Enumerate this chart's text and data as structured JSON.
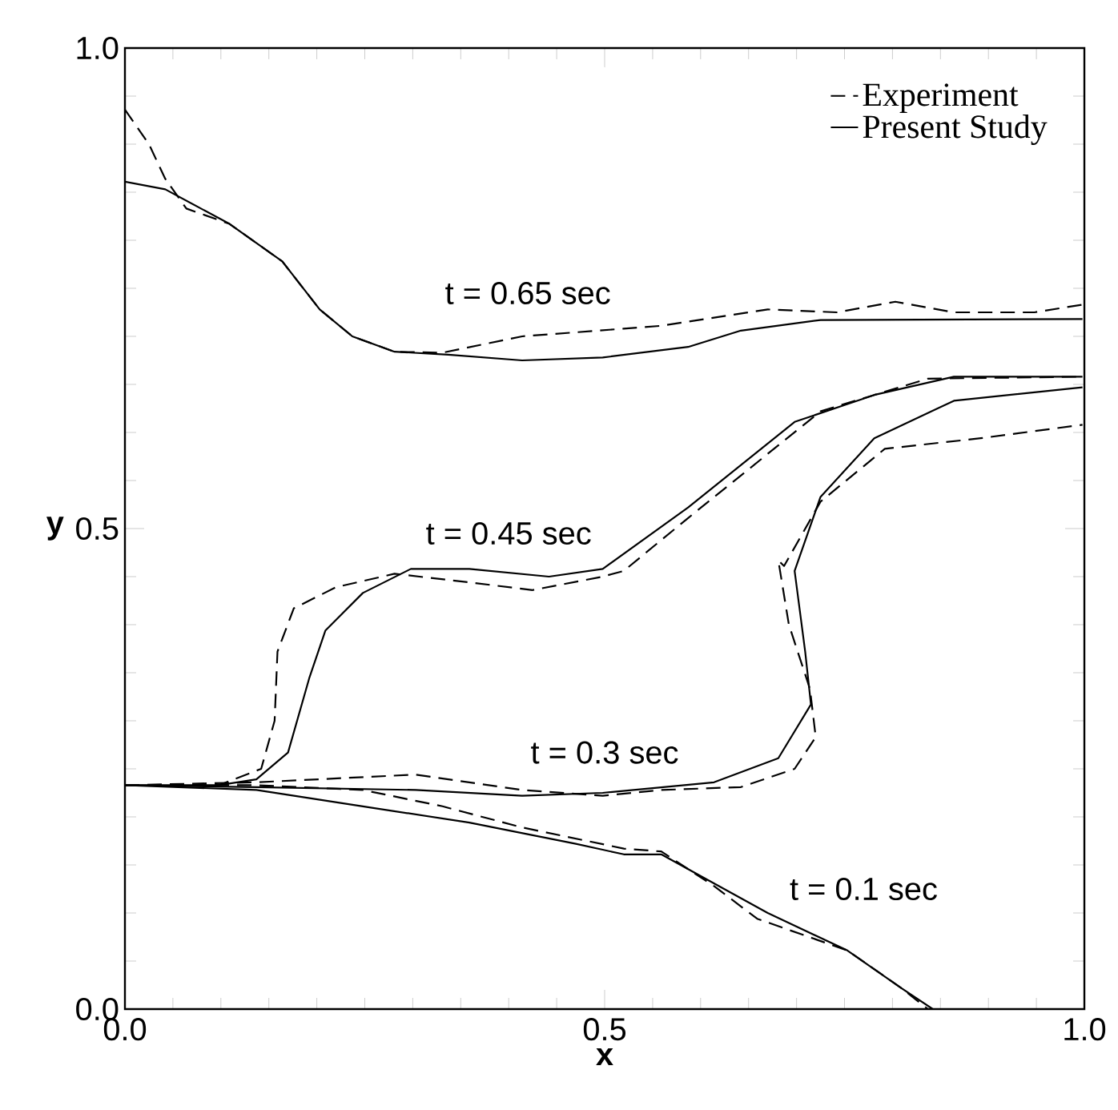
{
  "chart_data": {
    "type": "line",
    "xlabel": "x",
    "ylabel": "y",
    "xlim": [
      0,
      1
    ],
    "ylim": [
      0,
      1
    ],
    "xticks": [
      {
        "value": 0,
        "label": "0.0"
      },
      {
        "value": 0.05,
        "label": null
      },
      {
        "value": 0.1,
        "label": null
      },
      {
        "value": 0.15,
        "label": null
      },
      {
        "value": 0.2,
        "label": null
      },
      {
        "value": 0.25,
        "label": null
      },
      {
        "value": 0.3,
        "label": null
      },
      {
        "value": 0.35,
        "label": null
      },
      {
        "value": 0.4,
        "label": null
      },
      {
        "value": 0.45,
        "label": null
      },
      {
        "value": 0.5,
        "label": "0.5"
      },
      {
        "value": 0.55,
        "label": null
      },
      {
        "value": 0.6,
        "label": null
      },
      {
        "value": 0.65,
        "label": null
      },
      {
        "value": 0.7,
        "label": null
      },
      {
        "value": 0.75,
        "label": null
      },
      {
        "value": 0.8,
        "label": null
      },
      {
        "value": 0.85,
        "label": null
      },
      {
        "value": 0.9,
        "label": null
      },
      {
        "value": 0.95,
        "label": null
      },
      {
        "value": 1,
        "label": "1.0"
      }
    ],
    "yticks": [
      {
        "value": 0,
        "label": "0.0"
      },
      {
        "value": 0.05,
        "label": null
      },
      {
        "value": 0.1,
        "label": null
      },
      {
        "value": 0.15,
        "label": null
      },
      {
        "value": 0.2,
        "label": null
      },
      {
        "value": 0.25,
        "label": null
      },
      {
        "value": 0.3,
        "label": null
      },
      {
        "value": 0.35,
        "label": null
      },
      {
        "value": 0.4,
        "label": null
      },
      {
        "value": 0.45,
        "label": null
      },
      {
        "value": 0.5,
        "label": "0.5"
      },
      {
        "value": 0.55,
        "label": null
      },
      {
        "value": 0.6,
        "label": null
      },
      {
        "value": 0.65,
        "label": null
      },
      {
        "value": 0.7,
        "label": null
      },
      {
        "value": 0.75,
        "label": null
      },
      {
        "value": 0.8,
        "label": null
      },
      {
        "value": 0.85,
        "label": null
      },
      {
        "value": 0.9,
        "label": null
      },
      {
        "value": 0.95,
        "label": null
      },
      {
        "value": 1,
        "label": "1.0"
      }
    ],
    "legend": "top right",
    "series": [
      {
        "name": "Experiment",
        "color": "#000000",
        "line_style": "dashed",
        "x": [
          0,
          0.025,
          0.042,
          0.064,
          0.109,
          0.164,
          0.203,
          0.237,
          0.281,
          0.331,
          0.414,
          0.52,
          0.559,
          0.67,
          0.742,
          0.803,
          0.864,
          0.948,
          0.998
        ],
        "values": [
          0.936,
          0.9,
          0.864,
          0.833,
          0.817,
          0.778,
          0.728,
          0.7,
          0.684,
          0.683,
          0.7,
          0.708,
          0.711,
          0.728,
          0.725,
          0.736,
          0.725,
          0.725,
          0.733
        ]
      },
      {
        "name": "Present Study",
        "color": "#000000",
        "line_style": "solid",
        "x": [
          0,
          0.042,
          0.109,
          0.164,
          0.203,
          0.237,
          0.281,
          0.337,
          0.414,
          0.498,
          0.587,
          0.642,
          0.725,
          0.998
        ],
        "values": [
          0.861,
          0.853,
          0.817,
          0.778,
          0.728,
          0.7,
          0.684,
          0.681,
          0.675,
          0.678,
          0.689,
          0.706,
          0.717,
          0.718
        ]
      },
      {
        "color": "#000000",
        "line_style": "dashed",
        "x": [
          0,
          0.098,
          0.142,
          0.156,
          0.159,
          0.176,
          0.22,
          0.281,
          0.359,
          0.425,
          0.498,
          0.52,
          0.587,
          0.725,
          0.837,
          0.998
        ],
        "values": [
          0.233,
          0.233,
          0.25,
          0.3,
          0.372,
          0.417,
          0.439,
          0.453,
          0.444,
          0.436,
          0.45,
          0.456,
          0.511,
          0.622,
          0.656,
          0.658
        ]
      },
      {
        "color": "#000000",
        "line_style": "solid",
        "x": [
          0,
          0.098,
          0.137,
          0.17,
          0.192,
          0.209,
          0.248,
          0.298,
          0.359,
          0.442,
          0.498,
          0.587,
          0.698,
          0.781,
          0.864,
          0.998
        ],
        "values": [
          0.233,
          0.233,
          0.239,
          0.267,
          0.344,
          0.394,
          0.433,
          0.458,
          0.458,
          0.45,
          0.458,
          0.522,
          0.611,
          0.639,
          0.658,
          0.658
        ]
      },
      {
        "color": "#000000",
        "line_style": "dashed",
        "x": [
          0,
          0.137,
          0.303,
          0.414,
          0.498,
          0.559,
          0.642,
          0.698,
          0.72,
          0.714,
          0.692,
          0.681,
          0.687,
          0.725,
          0.792,
          0.892,
          0.998
        ],
        "values": [
          0.233,
          0.236,
          0.244,
          0.228,
          0.222,
          0.228,
          0.231,
          0.25,
          0.283,
          0.333,
          0.4,
          0.467,
          0.461,
          0.528,
          0.583,
          0.594,
          0.608
        ]
      },
      {
        "color": "#000000",
        "line_style": "solid",
        "x": [
          0,
          0.137,
          0.303,
          0.414,
          0.498,
          0.614,
          0.681,
          0.715,
          0.709,
          0.698,
          0.725,
          0.781,
          0.864,
          0.998
        ],
        "values": [
          0.233,
          0.231,
          0.228,
          0.222,
          0.225,
          0.236,
          0.261,
          0.317,
          0.372,
          0.456,
          0.533,
          0.594,
          0.633,
          0.647
        ]
      },
      {
        "color": "#000000",
        "line_style": "dashed",
        "x": [
          0,
          0.137,
          0.248,
          0.331,
          0.414,
          0.52,
          0.559,
          0.614,
          0.659,
          0.753,
          0.809,
          0.837
        ],
        "values": [
          0.233,
          0.233,
          0.228,
          0.211,
          0.189,
          0.167,
          0.164,
          0.128,
          0.094,
          0.061,
          0.022,
          0
        ]
      },
      {
        "color": "#000000",
        "line_style": "solid",
        "x": [
          0,
          0.137,
          0.248,
          0.359,
          0.47,
          0.52,
          0.559,
          0.67,
          0.753,
          0.809,
          0.842
        ],
        "values": [
          0.233,
          0.228,
          0.211,
          0.194,
          0.172,
          0.161,
          0.161,
          0.1,
          0.061,
          0.022,
          0
        ]
      }
    ],
    "annotations": [
      "t = 0.65 sec",
      "t = 0.45 sec",
      "t = 0.3 sec",
      "t = 0.1 sec"
    ]
  }
}
